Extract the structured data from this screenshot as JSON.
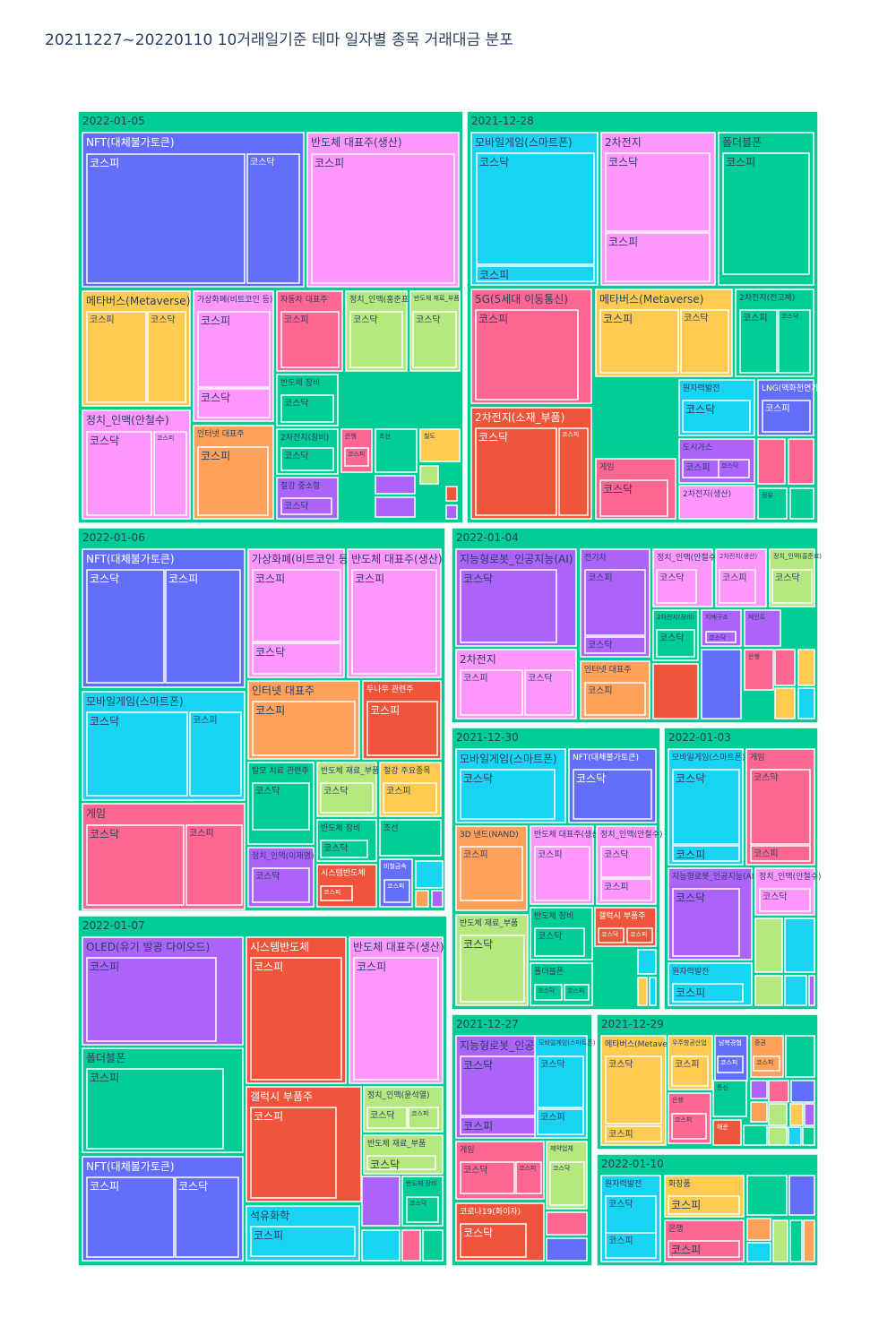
{
  "title": "20211227~20220110 10거래일기준 테마 일자별 종목 거래대금 분포",
  "colors": {
    "date_bg": "#00cc96",
    "blue": "#636efa",
    "pink": "#ff97ff",
    "orange": "#fecb52",
    "red": "#ef553b",
    "purple": "#ab63fa",
    "cyan": "#19d3f3",
    "salmon": "#ffa15a",
    "lime": "#b6e880",
    "rose": "#ff6692",
    "green": "#00cc96",
    "text": "#2a3f5f",
    "text_light": "#ffffff"
  },
  "chart_data": {
    "type": "treemap",
    "title": "20211227~20220110 10거래일기준 테마 일자별 종목 거래대금 분포",
    "hierarchy": [
      "거래일",
      "테마",
      "시장"
    ],
    "dates": [
      {
        "label": "2022-01-05",
        "themes": [
          {
            "label": "NFT(대체불가토큰)",
            "color": "blue",
            "markets": [
              "코스피",
              "코스닥"
            ]
          },
          {
            "label": "반도체 대표주(생산)",
            "color": "pink",
            "markets": [
              "코스피"
            ]
          },
          {
            "label": "메타버스(Metaverse)",
            "color": "orange",
            "markets": [
              "코스피",
              "코스닥"
            ]
          },
          {
            "label": "가상화폐(비트코인 등)",
            "color": "pink",
            "markets": [
              "코스피",
              "코스닥"
            ]
          },
          {
            "label": "자동차 대표주",
            "color": "rose",
            "markets": [
              "코스피"
            ]
          },
          {
            "label": "정치_인맥(홍준표)",
            "color": "lime",
            "markets": [
              "코스닥"
            ]
          },
          {
            "label": "반도체 재료_부품",
            "color": "lime",
            "markets": [
              "코스닥"
            ]
          },
          {
            "label": "정치_인맥(안철수)",
            "color": "pink",
            "markets": [
              "코스닥",
              "코스피"
            ]
          },
          {
            "label": "반도체 장비",
            "color": "green",
            "markets": [
              "코스닥"
            ]
          },
          {
            "label": "인터넷 대표주",
            "color": "salmon",
            "markets": [
              "코스피"
            ]
          },
          {
            "label": "2차전지(장비)",
            "color": "green",
            "markets": [
              "코스닥"
            ]
          },
          {
            "label": "은행",
            "color": "rose",
            "markets": [
              "코스피"
            ]
          },
          {
            "label": "조선",
            "color": "green",
            "markets": []
          },
          {
            "label": "철도",
            "color": "orange",
            "markets": []
          },
          {
            "label": "철강 중소형",
            "color": "purple",
            "markets": [
              "코스닥"
            ]
          }
        ]
      },
      {
        "label": "2021-12-28",
        "themes": [
          {
            "label": "모바일게임(스마트폰)",
            "color": "cyan",
            "markets": [
              "코스닥",
              "코스피"
            ]
          },
          {
            "label": "2차전지",
            "color": "pink",
            "markets": [
              "코스닥",
              "코스피"
            ]
          },
          {
            "label": "폴더블폰",
            "color": "green",
            "markets": [
              "코스피"
            ]
          },
          {
            "label": "5G(5세대 이동통신)",
            "color": "rose",
            "markets": [
              "코스피"
            ]
          },
          {
            "label": "메타버스(Metaverse)",
            "color": "orange",
            "markets": [
              "코스피",
              "코스닥"
            ]
          },
          {
            "label": "2차전지(전고체)",
            "color": "green",
            "markets": [
              "코스피",
              "코스닥"
            ]
          },
          {
            "label": "2차전지(소재_부품)",
            "color": "red",
            "markets": [
              "코스닥",
              "코스피"
            ]
          },
          {
            "label": "원자력발전",
            "color": "cyan",
            "markets": [
              "코스닥"
            ]
          },
          {
            "label": "LNG(액화천연가스)",
            "color": "blue",
            "markets": [
              "코스피"
            ]
          },
          {
            "label": "도시가스",
            "color": "purple",
            "markets": [
              "코스피",
              "코스닥"
            ]
          },
          {
            "label": "게임",
            "color": "rose",
            "markets": [
              "코스닥"
            ]
          },
          {
            "label": "2차전지(생산)",
            "color": "pink",
            "markets": []
          },
          {
            "label": "정유",
            "color": "green",
            "markets": []
          }
        ]
      },
      {
        "label": "2022-01-06",
        "themes": [
          {
            "label": "NFT(대체불가토큰)",
            "color": "blue",
            "markets": [
              "코스닥",
              "코스피"
            ]
          },
          {
            "label": "가상화폐(비트코인 등)",
            "color": "pink",
            "markets": [
              "코스피",
              "코스닥"
            ]
          },
          {
            "label": "반도체 대표주(생산)",
            "color": "pink",
            "markets": [
              "코스피"
            ]
          },
          {
            "label": "모바일게임(스마트폰)",
            "color": "cyan",
            "markets": [
              "코스닥",
              "코스피"
            ]
          },
          {
            "label": "인터넷 대표주",
            "color": "salmon",
            "markets": [
              "코스피"
            ]
          },
          {
            "label": "두나무 관련주",
            "color": "red",
            "markets": [
              "코스피"
            ]
          },
          {
            "label": "게임",
            "color": "rose",
            "markets": [
              "코스닥",
              "코스피"
            ]
          },
          {
            "label": "탈모 치료 관련주",
            "color": "green",
            "markets": [
              "코스닥"
            ]
          },
          {
            "label": "반도체 재료_부품",
            "color": "lime",
            "markets": [
              "코스닥"
            ]
          },
          {
            "label": "철강 주요종목",
            "color": "orange",
            "markets": [
              "코스피"
            ]
          },
          {
            "label": "반도체 장비",
            "color": "green",
            "markets": [
              "코스닥"
            ]
          },
          {
            "label": "조선",
            "color": "green",
            "markets": []
          },
          {
            "label": "정치_인맥(이재명)",
            "color": "purple",
            "markets": [
              "코스닥"
            ]
          },
          {
            "label": "시스템반도체",
            "color": "red",
            "markets": [
              "코스피"
            ]
          },
          {
            "label": "비철금속",
            "color": "blue",
            "markets": [
              "코스피"
            ]
          }
        ]
      },
      {
        "label": "2022-01-04",
        "themes": [
          {
            "label": "지능형로봇_인공지능(AI)",
            "color": "purple",
            "markets": [
              "코스닥"
            ]
          },
          {
            "label": "전기차",
            "color": "purple",
            "markets": [
              "코스피",
              "코스닥"
            ]
          },
          {
            "label": "정치_인맥(안철수)",
            "color": "pink",
            "markets": [
              "코스닥"
            ]
          },
          {
            "label": "2차전지(생산)",
            "color": "pink",
            "markets": [
              "코스피"
            ]
          },
          {
            "label": "정치_인맥(홍준표)",
            "color": "lime",
            "markets": [
              "코스닥"
            ]
          },
          {
            "label": "2차전지(장비)",
            "color": "green",
            "markets": [
              "코스닥"
            ]
          },
          {
            "label": "지배구조",
            "color": "purple",
            "markets": [
              "코스닥"
            ]
          },
          {
            "label": "페인트",
            "color": "purple",
            "markets": []
          },
          {
            "label": "2차전지",
            "color": "pink",
            "markets": [
              "코스피",
              "코스닥"
            ]
          },
          {
            "label": "인터넷 대표주",
            "color": "salmon",
            "markets": [
              "코스피"
            ]
          },
          {
            "label": "은행",
            "color": "rose",
            "markets": []
          }
        ]
      },
      {
        "label": "2021-12-30",
        "themes": [
          {
            "label": "모바일게임(스마트폰)",
            "color": "cyan",
            "markets": [
              "코스닥"
            ]
          },
          {
            "label": "NFT(대체불가토큰)",
            "color": "blue",
            "markets": [
              "코스닥"
            ]
          },
          {
            "label": "3D 낸드(NAND)",
            "color": "salmon",
            "markets": [
              "코스피"
            ]
          },
          {
            "label": "반도체 대표주(생산)",
            "color": "pink",
            "markets": [
              "코스피"
            ]
          },
          {
            "label": "정치_인맥(안철수)",
            "color": "pink",
            "markets": [
              "코스닥",
              "코스피"
            ]
          },
          {
            "label": "반도체 재료_부품",
            "color": "lime",
            "markets": [
              "코스닥"
            ]
          },
          {
            "label": "반도체 장비",
            "color": "green",
            "markets": [
              "코스닥"
            ]
          },
          {
            "label": "갤럭시 부품주",
            "color": "red",
            "markets": [
              "코스닥",
              "코스피"
            ]
          },
          {
            "label": "폴더블폰",
            "color": "green",
            "markets": [
              "코스닥",
              "코스피"
            ]
          }
        ]
      },
      {
        "label": "2022-01-03",
        "themes": [
          {
            "label": "모바일게임(스마트폰)",
            "color": "cyan",
            "markets": [
              "코스닥",
              "코스피"
            ]
          },
          {
            "label": "게임",
            "color": "rose",
            "markets": [
              "코스닥",
              "코스피"
            ]
          },
          {
            "label": "지능형로봇_인공지능(AI)",
            "color": "purple",
            "markets": [
              "코스닥"
            ]
          },
          {
            "label": "정치_인맥(안철수)",
            "color": "pink",
            "markets": [
              "코스닥"
            ]
          },
          {
            "label": "원자력발전",
            "color": "cyan",
            "markets": [
              "코스피"
            ]
          }
        ]
      },
      {
        "label": "2022-01-07",
        "themes": [
          {
            "label": "OLED(유기 발광 다이오드)",
            "color": "purple",
            "markets": [
              "코스피"
            ]
          },
          {
            "label": "시스템반도체",
            "color": "red",
            "markets": [
              "코스피"
            ]
          },
          {
            "label": "반도체 대표주(생산)",
            "color": "pink",
            "markets": [
              "코스피"
            ]
          },
          {
            "label": "폴더블폰",
            "color": "green",
            "markets": [
              "코스피"
            ]
          },
          {
            "label": "갤럭시 부품주",
            "color": "red",
            "markets": [
              "코스피"
            ]
          },
          {
            "label": "정치_인맥(윤석열)",
            "color": "lime",
            "markets": [
              "코스닥",
              "코스피"
            ]
          },
          {
            "label": "반도체 재료_부품",
            "color": "lime",
            "markets": [
              "코스닥"
            ]
          },
          {
            "label": "NFT(대체불가토큰)",
            "color": "blue",
            "markets": [
              "코스피",
              "코스닥"
            ]
          },
          {
            "label": "석유화학",
            "color": "cyan",
            "markets": [
              "코스피"
            ]
          },
          {
            "label": "반도체 장비",
            "color": "green",
            "markets": [
              "코스닥"
            ]
          }
        ]
      },
      {
        "label": "2021-12-27",
        "themes": [
          {
            "label": "지능형로봇_인공지능(AI)",
            "color": "purple",
            "markets": [
              "코스닥",
              "코스피"
            ]
          },
          {
            "label": "모바일게임(스마트폰)",
            "color": "cyan",
            "markets": [
              "코스닥",
              "코스피"
            ]
          },
          {
            "label": "게임",
            "color": "rose",
            "markets": [
              "코스닥",
              "코스피"
            ]
          },
          {
            "label": "제약업체",
            "color": "lime",
            "markets": [
              "코스닥"
            ]
          },
          {
            "label": "코로나19(화이자)",
            "color": "red",
            "markets": [
              "코스닥"
            ]
          }
        ]
      },
      {
        "label": "2021-12-29",
        "themes": [
          {
            "label": "메타버스(Metaverse)",
            "color": "orange",
            "markets": [
              "코스닥",
              "코스피"
            ]
          },
          {
            "label": "우주항공산업",
            "color": "orange",
            "markets": [
              "코스피"
            ]
          },
          {
            "label": "남북경협",
            "color": "blue",
            "markets": [
              "코스피"
            ]
          },
          {
            "label": "증권",
            "color": "salmon",
            "markets": [
              "코스피"
            ]
          },
          {
            "label": "은행",
            "color": "rose",
            "markets": [
              "코스피"
            ]
          },
          {
            "label": "통신",
            "color": "green",
            "markets": []
          },
          {
            "label": "해운",
            "color": "red",
            "markets": []
          }
        ]
      },
      {
        "label": "2022-01-10",
        "themes": [
          {
            "label": "원자력발전",
            "color": "cyan",
            "markets": [
              "코스닥",
              "코스피"
            ]
          },
          {
            "label": "화장품",
            "color": "orange",
            "markets": [
              "코스피"
            ]
          },
          {
            "label": "은행",
            "color": "rose",
            "markets": [
              "코스피"
            ]
          }
        ]
      }
    ]
  }
}
